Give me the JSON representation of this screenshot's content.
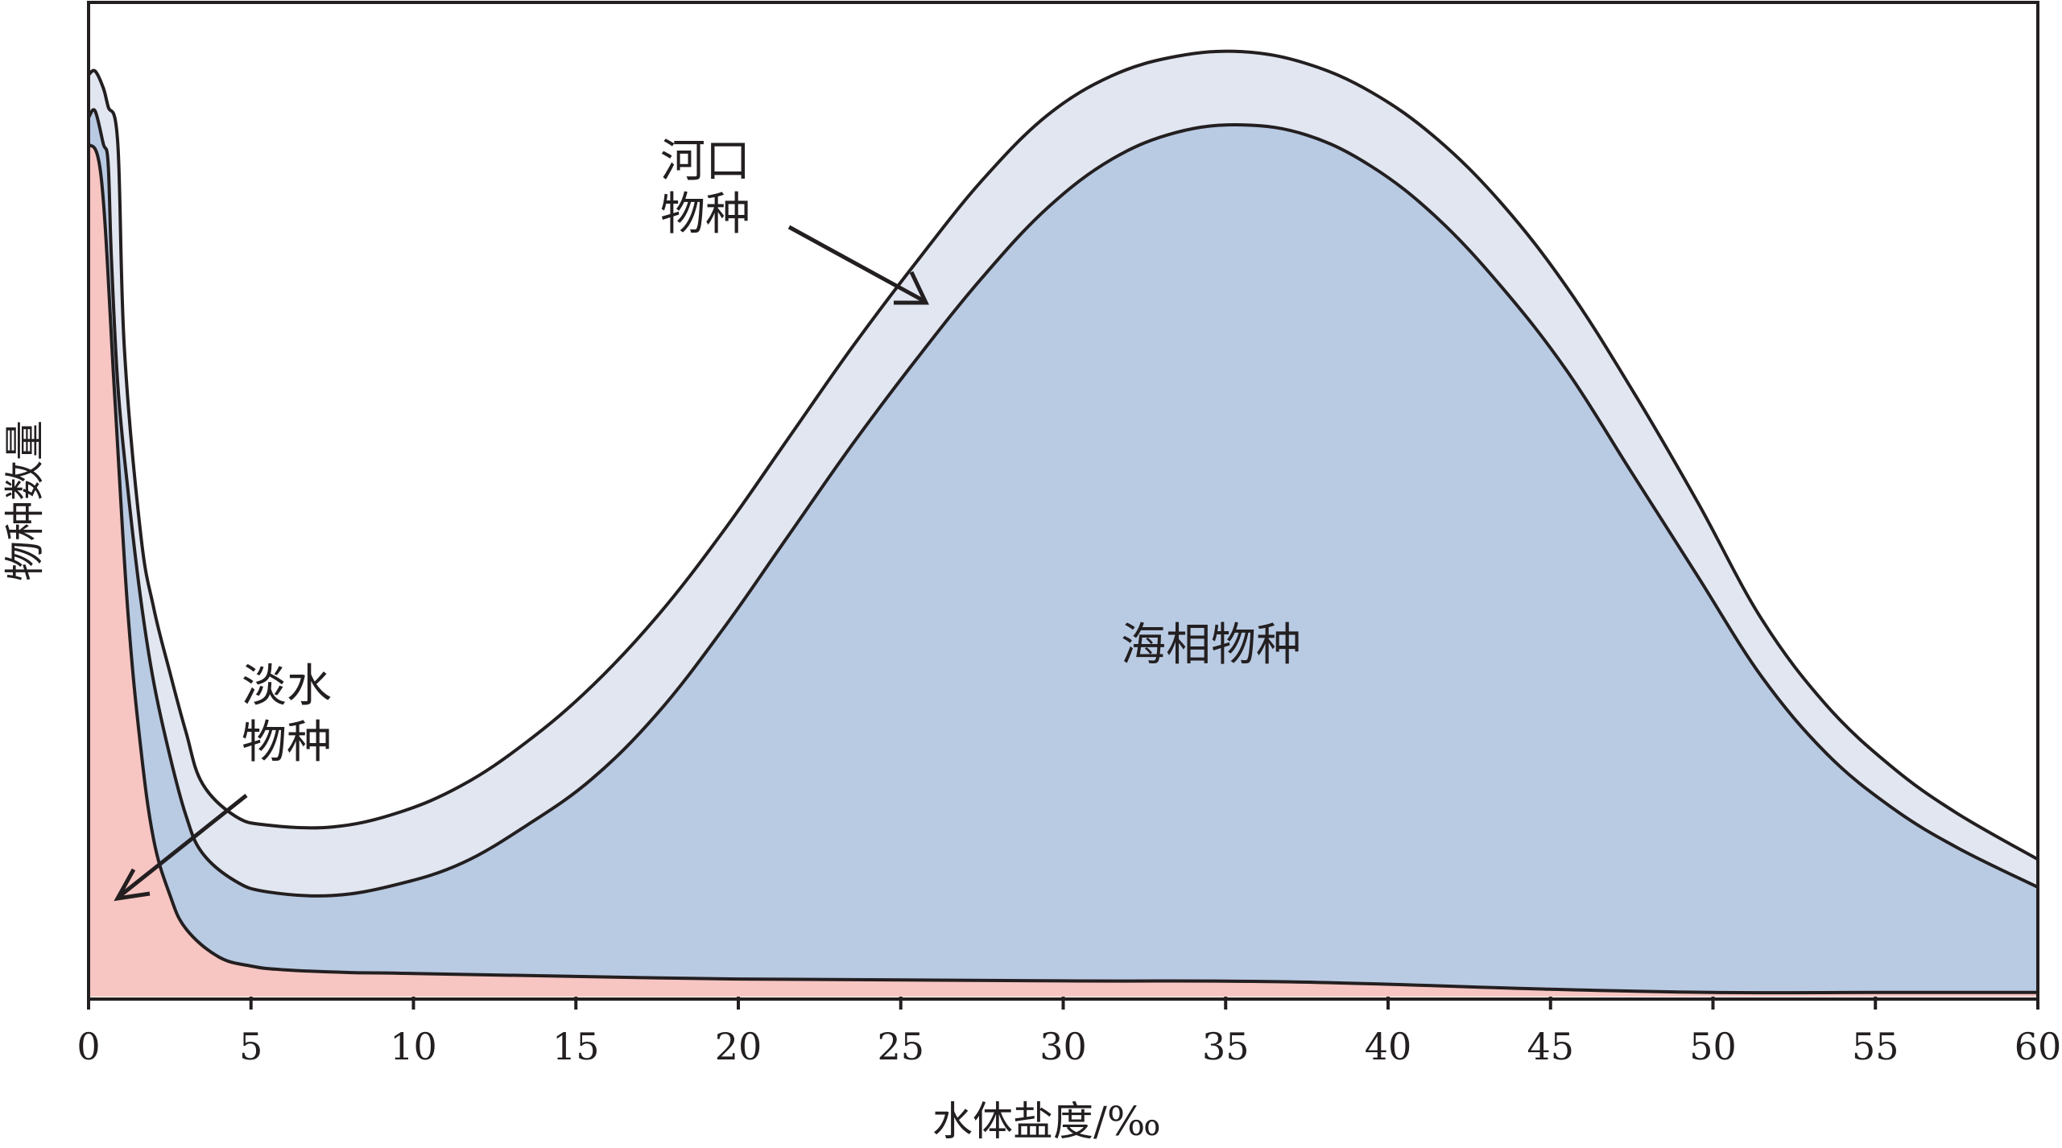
{
  "chart_data": {
    "type": "area",
    "xlabel": "水体盐度/‰",
    "ylabel": "物种数量",
    "xlim": [
      0,
      60
    ],
    "ylim": [
      0,
      100
    ],
    "x_ticks": [
      "0",
      "5",
      "10",
      "15",
      "20",
      "25",
      "30",
      "35",
      "40",
      "45",
      "50",
      "55",
      "60"
    ],
    "y_ticks_shown": false,
    "grid": false,
    "series": [
      {
        "name": "淡水物种",
        "color": "#f7c5c2",
        "points": [
          [
            0,
            92
          ],
          [
            0.4,
            88
          ],
          [
            0.8,
            65
          ],
          [
            1.2,
            42
          ],
          [
            1.6,
            27
          ],
          [
            2.0,
            17
          ],
          [
            2.5,
            11
          ],
          [
            3.0,
            7.3
          ],
          [
            4.0,
            4.3
          ],
          [
            5.0,
            3.3
          ],
          [
            6.0,
            2.9
          ],
          [
            8.0,
            2.6
          ],
          [
            10,
            2.5
          ],
          [
            20,
            1.9
          ],
          [
            30,
            1.7
          ],
          [
            37,
            1.6
          ],
          [
            45,
            0.8
          ],
          [
            50,
            0.45
          ],
          [
            55,
            0.45
          ],
          [
            60,
            0.45
          ]
        ]
      },
      {
        "name": "海相物种",
        "color": "#b9cae3",
        "points": [
          [
            0,
            94.8
          ],
          [
            0.2,
            95.5
          ],
          [
            0.45,
            92
          ],
          [
            0.6,
            90
          ],
          [
            0.7,
            80
          ],
          [
            0.9,
            66
          ],
          [
            1.2,
            55
          ],
          [
            1.6,
            43
          ],
          [
            2.0,
            34
          ],
          [
            2.5,
            26
          ],
          [
            3.0,
            19.5
          ],
          [
            3.5,
            15.5
          ],
          [
            4.5,
            12.5
          ],
          [
            5.5,
            11.3
          ],
          [
            7.5,
            10.9
          ],
          [
            9.5,
            12.1
          ],
          [
            11.5,
            14.4
          ],
          [
            13.5,
            18.5
          ],
          [
            15.5,
            23.5
          ],
          [
            17.5,
            30.5
          ],
          [
            19.5,
            39.5
          ],
          [
            21.5,
            49.5
          ],
          [
            23.5,
            59.5
          ],
          [
            25.5,
            68.8
          ],
          [
            27.5,
            77.5
          ],
          [
            29.5,
            85
          ],
          [
            31.5,
            90.3
          ],
          [
            33.5,
            93.2
          ],
          [
            35.5,
            94.0
          ],
          [
            37.5,
            92.9
          ],
          [
            39.5,
            89.5
          ],
          [
            41.5,
            84
          ],
          [
            43.5,
            76.5
          ],
          [
            45.5,
            67.5
          ],
          [
            47.5,
            56.5
          ],
          [
            49.5,
            45.5
          ],
          [
            51.5,
            34.5
          ],
          [
            53.5,
            26.2
          ],
          [
            55.5,
            20.4
          ],
          [
            57.5,
            16.1
          ],
          [
            60,
            11.8
          ]
        ]
      },
      {
        "name": "河口物种",
        "color": "#e1e6f0",
        "points": [
          [
            0,
            99.4
          ],
          [
            0.2,
            99.8
          ],
          [
            0.45,
            98
          ],
          [
            0.6,
            96
          ],
          [
            0.9,
            92
          ],
          [
            1.1,
            70
          ],
          [
            1.6,
            50
          ],
          [
            2.0,
            42
          ],
          [
            2.5,
            35
          ],
          [
            3.0,
            28.5
          ],
          [
            3.5,
            23
          ],
          [
            4.5,
            19.5
          ],
          [
            5.5,
            18.5
          ],
          [
            7.5,
            18.3
          ],
          [
            9.5,
            19.8
          ],
          [
            11.5,
            22.8
          ],
          [
            13.5,
            27.5
          ],
          [
            15.5,
            33.5
          ],
          [
            17.5,
            41
          ],
          [
            19.5,
            50
          ],
          [
            21.5,
            60
          ],
          [
            23.5,
            70
          ],
          [
            25.5,
            79.3
          ],
          [
            27.5,
            88
          ],
          [
            29.5,
            95
          ],
          [
            31.5,
            99.3
          ],
          [
            33.5,
            101.4
          ],
          [
            35.5,
            101.9
          ],
          [
            37.5,
            100.6
          ],
          [
            39.5,
            97.5
          ],
          [
            41.5,
            92.5
          ],
          [
            43.5,
            85.5
          ],
          [
            45.5,
            76.5
          ],
          [
            47.5,
            65.5
          ],
          [
            49.5,
            53.5
          ],
          [
            51.5,
            40.7
          ],
          [
            53.5,
            31.4
          ],
          [
            55.5,
            24.8
          ],
          [
            57.5,
            19.8
          ],
          [
            60,
            14.8
          ]
        ]
      }
    ],
    "annotations": [
      {
        "text_lines": [
          "淡水",
          "物种"
        ],
        "points_to": "淡水物种"
      },
      {
        "text_lines": [
          "河口",
          "物种"
        ],
        "points_to": "河口物种"
      },
      {
        "text_lines": [
          "海相物种"
        ],
        "points_to": "海相物种"
      }
    ]
  }
}
